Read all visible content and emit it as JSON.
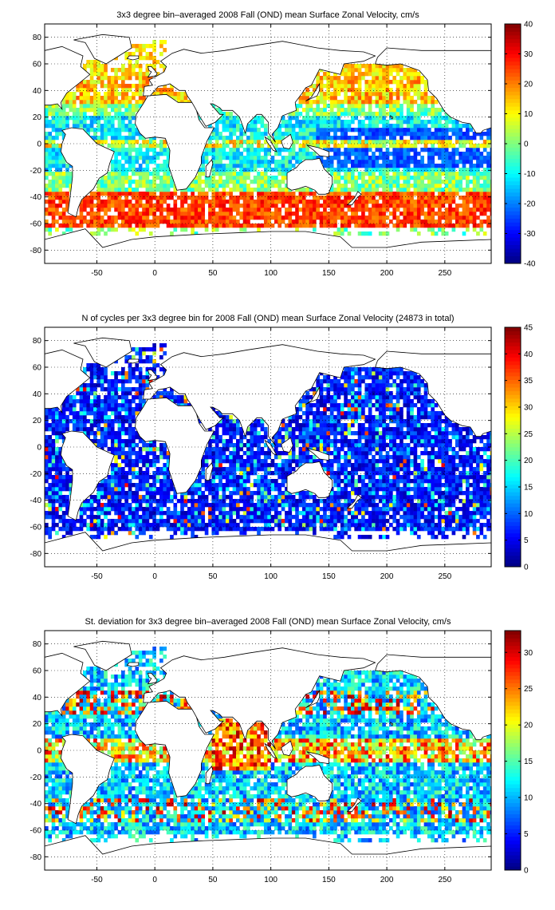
{
  "colormap": "jet",
  "colors": {
    "land": "#ffffff",
    "coast": "#000000",
    "grid": "#000000"
  },
  "chart_data": [
    {
      "type": "heatmap",
      "title": "3x3 degree bin–averaged 2008 Fall (OND) mean Surface Zonal Velocity, cm/s",
      "xlabel": "",
      "ylabel": "",
      "xlim": [
        -95,
        290
      ],
      "ylim": [
        -90,
        90
      ],
      "xticks": [
        -50,
        0,
        50,
        100,
        150,
        200,
        250
      ],
      "yticks": [
        -80,
        -60,
        -40,
        -20,
        0,
        20,
        40,
        60,
        80
      ],
      "bin_size_deg": 3,
      "grid": true,
      "colorbar": {
        "min": -40,
        "max": 40,
        "ticks": [
          -40,
          -30,
          -20,
          -10,
          0,
          10,
          20,
          30,
          40
        ]
      },
      "value_field": "zonal_velocity"
    },
    {
      "type": "heatmap",
      "title": "N of cycles per 3x3 degree bin for 2008 Fall (OND) mean Surface Zonal Velocity (24873 in total)",
      "xlabel": "",
      "ylabel": "",
      "xlim": [
        -95,
        290
      ],
      "ylim": [
        -90,
        90
      ],
      "xticks": [
        -50,
        0,
        50,
        100,
        150,
        200,
        250
      ],
      "yticks": [
        -80,
        -60,
        -40,
        -20,
        0,
        20,
        40,
        60,
        80
      ],
      "bin_size_deg": 3,
      "grid": true,
      "colorbar": {
        "min": 0,
        "max": 45,
        "ticks": [
          0,
          5,
          10,
          15,
          20,
          25,
          30,
          35,
          40,
          45
        ]
      },
      "value_field": "cycle_count"
    },
    {
      "type": "heatmap",
      "title": "St. deviation for 3x3 degree bin–averaged 2008 Fall (OND) mean Surface Zonal Velocity, cm/s",
      "xlabel": "",
      "ylabel": "",
      "xlim": [
        -95,
        290
      ],
      "ylim": [
        -90,
        90
      ],
      "xticks": [
        -50,
        0,
        50,
        100,
        150,
        200,
        250
      ],
      "yticks": [
        -80,
        -60,
        -40,
        -20,
        0,
        20,
        40,
        60,
        80
      ],
      "bin_size_deg": 3,
      "grid": true,
      "colorbar": {
        "min": 0,
        "max": 33,
        "ticks": [
          0,
          5,
          10,
          15,
          20,
          25,
          30
        ]
      },
      "value_field": "std_deviation"
    }
  ]
}
